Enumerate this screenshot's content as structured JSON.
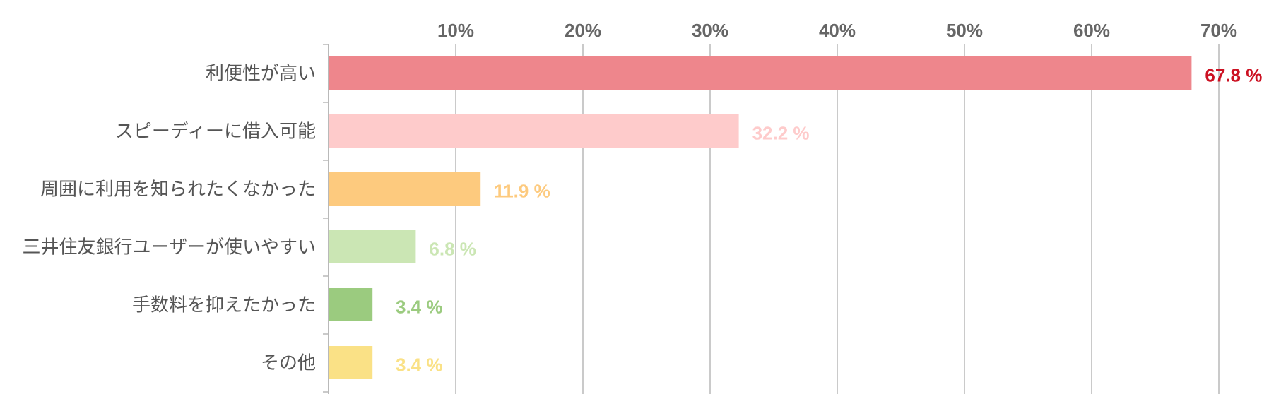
{
  "chart_data": {
    "type": "bar",
    "orientation": "horizontal",
    "title": "",
    "xlabel": "",
    "ylabel": "",
    "xlim": [
      0,
      70
    ],
    "x_ticks": [
      {
        "value": 10,
        "label": "10%"
      },
      {
        "value": 20,
        "label": "20%"
      },
      {
        "value": 30,
        "label": "30%"
      },
      {
        "value": 40,
        "label": "40%"
      },
      {
        "value": 50,
        "label": "50%"
      },
      {
        "value": 60,
        "label": "60%"
      },
      {
        "value": 70,
        "label": "70%"
      }
    ],
    "grid": true,
    "legend": "none",
    "unit": "%",
    "categories": [
      "利便性が高い",
      "スピーディーに借入可能",
      "周囲に利用を知られたくなかった",
      "三井住友銀行ユーザーが使いやすい",
      "手数料を抑えたかった",
      "その他"
    ],
    "values": [
      67.8,
      32.2,
      11.9,
      6.8,
      3.4,
      3.4
    ],
    "value_labels": [
      "67.8 %",
      "32.2 %",
      "11.9 %",
      "6.8 %",
      "3.4 %",
      "3.4 %"
    ],
    "bar_colors": [
      "#ee868c",
      "#fecbcb",
      "#fdca7e",
      "#cbe6b4",
      "#9bcb7f",
      "#fae186"
    ],
    "label_colors": [
      "#cc1122",
      "#fecbcb",
      "#fdca7e",
      "#cbe6b4",
      "#9bcb7f",
      "#fae186"
    ]
  }
}
